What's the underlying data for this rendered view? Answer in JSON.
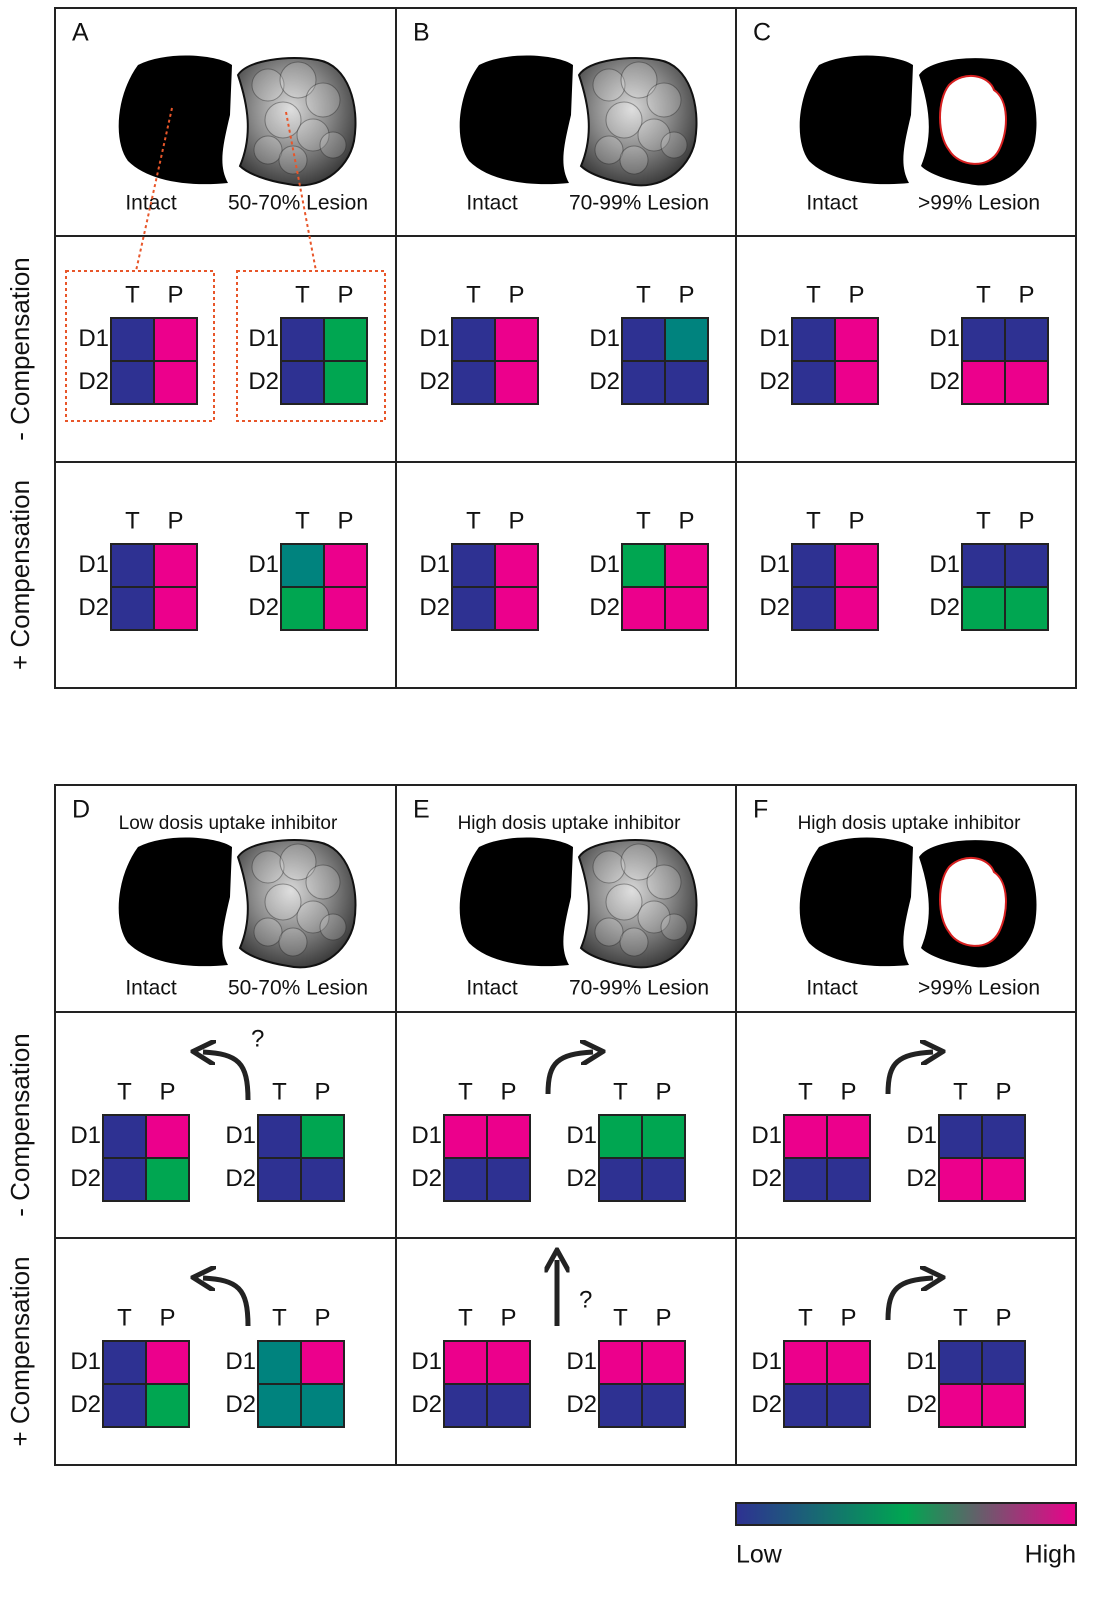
{
  "row_labels": [
    "- Compensation",
    "+ Compensation"
  ],
  "matrix_labels": {
    "columns": [
      "T",
      "P"
    ],
    "rows": [
      "D1",
      "D2"
    ]
  },
  "colors": {
    "blue": "#2e3192",
    "pink": "#ec008c",
    "green": "#00a651",
    "teal": "#00837e"
  },
  "panels": [
    {
      "letter": "A",
      "brain": {
        "intact": "Intact",
        "lesion": "50-70% Lesion",
        "lesion_type": "partial"
      },
      "rows": [
        {
          "matrices": [
            [
              [
                "blue",
                "pink"
              ],
              [
                "blue",
                "pink"
              ]
            ],
            [
              [
                "blue",
                "green"
              ],
              [
                "blue",
                "green"
              ]
            ]
          ]
        },
        {
          "matrices": [
            [
              [
                "blue",
                "pink"
              ],
              [
                "blue",
                "pink"
              ]
            ],
            [
              [
                "teal",
                "pink"
              ],
              [
                "green",
                "pink"
              ]
            ]
          ]
        }
      ]
    },
    {
      "letter": "B",
      "brain": {
        "intact": "Intact",
        "lesion": "70-99% Lesion",
        "lesion_type": "partial"
      },
      "rows": [
        {
          "matrices": [
            [
              [
                "blue",
                "pink"
              ],
              [
                "blue",
                "pink"
              ]
            ],
            [
              [
                "blue",
                "teal"
              ],
              [
                "blue",
                "blue"
              ]
            ]
          ]
        },
        {
          "matrices": [
            [
              [
                "blue",
                "pink"
              ],
              [
                "blue",
                "pink"
              ]
            ],
            [
              [
                "green",
                "pink"
              ],
              [
                "pink",
                "pink"
              ]
            ]
          ]
        }
      ]
    },
    {
      "letter": "C",
      "brain": {
        "intact": "Intact",
        "lesion": ">99% Lesion",
        "lesion_type": "complete"
      },
      "rows": [
        {
          "matrices": [
            [
              [
                "blue",
                "pink"
              ],
              [
                "blue",
                "pink"
              ]
            ],
            [
              [
                "blue",
                "blue"
              ],
              [
                "pink",
                "pink"
              ]
            ]
          ]
        },
        {
          "matrices": [
            [
              [
                "blue",
                "pink"
              ],
              [
                "blue",
                "pink"
              ]
            ],
            [
              [
                "blue",
                "blue"
              ],
              [
                "green",
                "green"
              ]
            ]
          ]
        }
      ]
    },
    {
      "letter": "D",
      "title": "Low dosis uptake inhibitor",
      "brain": {
        "intact": "Intact",
        "lesion": "50-70% Lesion",
        "lesion_type": "partial"
      },
      "rows": [
        {
          "arrow": {
            "direction": "left",
            "mark": "?"
          },
          "matrices": [
            [
              [
                "blue",
                "pink"
              ],
              [
                "blue",
                "green"
              ]
            ],
            [
              [
                "blue",
                "green"
              ],
              [
                "blue",
                "blue"
              ]
            ]
          ]
        },
        {
          "arrow": {
            "direction": "left"
          },
          "matrices": [
            [
              [
                "blue",
                "pink"
              ],
              [
                "blue",
                "green"
              ]
            ],
            [
              [
                "teal",
                "pink"
              ],
              [
                "teal",
                "teal"
              ]
            ]
          ]
        }
      ]
    },
    {
      "letter": "E",
      "title": "High dosis uptake inhibitor",
      "brain": {
        "intact": "Intact",
        "lesion": "70-99% Lesion",
        "lesion_type": "partial"
      },
      "rows": [
        {
          "arrow": {
            "direction": "right"
          },
          "matrices": [
            [
              [
                "pink",
                "pink"
              ],
              [
                "blue",
                "blue"
              ]
            ],
            [
              [
                "green",
                "green"
              ],
              [
                "blue",
                "blue"
              ]
            ]
          ]
        },
        {
          "arrow": {
            "direction": "up",
            "mark": "?"
          },
          "matrices": [
            [
              [
                "pink",
                "pink"
              ],
              [
                "blue",
                "blue"
              ]
            ],
            [
              [
                "pink",
                "pink"
              ],
              [
                "blue",
                "blue"
              ]
            ]
          ]
        }
      ]
    },
    {
      "letter": "F",
      "title": "High dosis uptake inhibitor",
      "brain": {
        "intact": "Intact",
        "lesion": ">99% Lesion",
        "lesion_type": "complete"
      },
      "rows": [
        {
          "arrow": {
            "direction": "right"
          },
          "matrices": [
            [
              [
                "pink",
                "pink"
              ],
              [
                "blue",
                "blue"
              ]
            ],
            [
              [
                "blue",
                "blue"
              ],
              [
                "pink",
                "pink"
              ]
            ]
          ]
        },
        {
          "arrow": {
            "direction": "right"
          },
          "matrices": [
            [
              [
                "pink",
                "pink"
              ],
              [
                "blue",
                "blue"
              ]
            ],
            [
              [
                "blue",
                "blue"
              ],
              [
                "pink",
                "pink"
              ]
            ]
          ]
        }
      ]
    }
  ],
  "legend": {
    "low": "Low",
    "high": "High",
    "colors": [
      "#2e3192",
      "#00a651",
      "#ec008c"
    ]
  }
}
